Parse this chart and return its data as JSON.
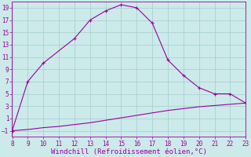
{
  "x_upper": [
    8,
    9,
    10,
    12,
    13,
    14,
    15,
    16,
    17,
    18,
    19,
    20,
    21,
    22,
    23
  ],
  "y_upper": [
    -1,
    7,
    10,
    14,
    17,
    18.5,
    19.5,
    19,
    16.5,
    10.5,
    8,
    6,
    5,
    5,
    3.5
  ],
  "x_lower": [
    8,
    9,
    10,
    11,
    12,
    13,
    14,
    15,
    16,
    17,
    18,
    19,
    20,
    21,
    22,
    23
  ],
  "y_lower": [
    -1,
    -0.8,
    -0.5,
    -0.3,
    0.0,
    0.3,
    0.7,
    1.1,
    1.5,
    1.9,
    2.3,
    2.6,
    2.9,
    3.1,
    3.3,
    3.5
  ],
  "line_color": "#990099",
  "background_color": "#cceaea",
  "grid_color": "#aad0d0",
  "xlabel": "Windchill (Refroidissement éolien,°C)",
  "xlim": [
    8,
    23
  ],
  "ylim": [
    -2,
    20
  ],
  "xticks": [
    8,
    9,
    10,
    11,
    12,
    13,
    14,
    15,
    16,
    17,
    18,
    19,
    20,
    21,
    22,
    23
  ],
  "yticks": [
    -1,
    1,
    3,
    5,
    7,
    9,
    11,
    13,
    15,
    17,
    19
  ],
  "tick_fontsize": 5.5,
  "xlabel_fontsize": 6.5
}
